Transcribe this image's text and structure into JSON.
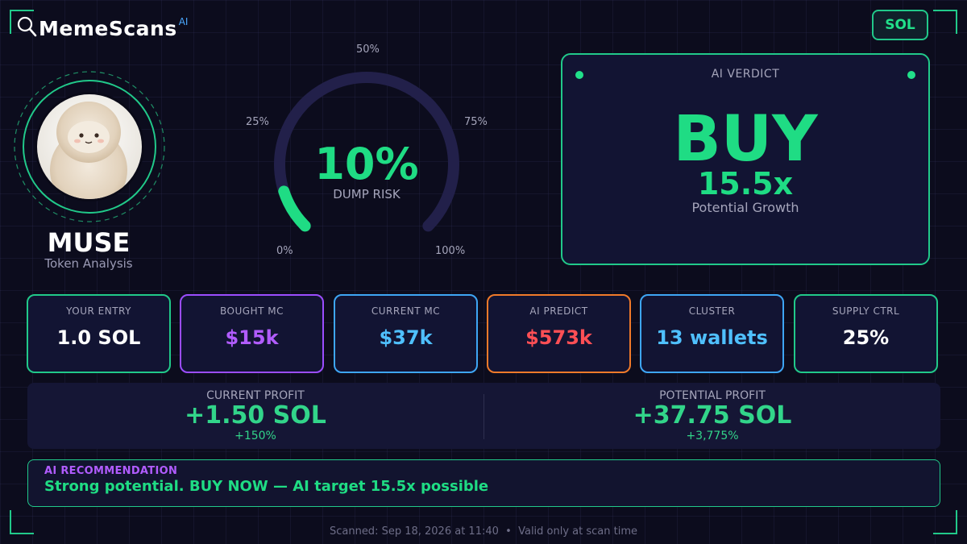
{
  "brand": {
    "name": "MemeScans",
    "badge": "AI",
    "icon": "magnifier-icon"
  },
  "chain_button": "SOL",
  "token": {
    "name": "MUSE",
    "subtitle": "Token Analysis",
    "avatar": "fluffy-creature-avatar"
  },
  "gauge": {
    "value_percent": 10,
    "value_label": "10%",
    "sub_label": "DUMP RISK",
    "tick_0": "0%",
    "tick_25": "25%",
    "tick_50": "50%",
    "tick_75": "75%",
    "tick_100": "100%",
    "track_color": "#22204a",
    "fill_color": "#1fdc84"
  },
  "verdict": {
    "title": "AI VERDICT",
    "decision": "BUY",
    "multiplier": "15.5x",
    "sub": "Potential Growth"
  },
  "stats": [
    {
      "label": "YOUR ENTRY",
      "value": "1.0 SOL",
      "border": "#21c98a",
      "color": "#ffffff"
    },
    {
      "label": "BOUGHT MC",
      "value": "$15k",
      "border": "#9b4dff",
      "color": "#b15cff"
    },
    {
      "label": "CURRENT MC",
      "value": "$37k",
      "border": "#3ea6f5",
      "color": "#4fc0ff"
    },
    {
      "label": "AI PREDICT",
      "value": "$573k",
      "border": "#f07a2a",
      "color": "#ff4f55"
    },
    {
      "label": "CLUSTER",
      "value": "13 wallets",
      "border": "#3ea6f5",
      "color": "#4fc0ff"
    },
    {
      "label": "SUPPLY CTRL",
      "value": "25%",
      "border": "#21c98a",
      "color": "#ffffff"
    }
  ],
  "profit": {
    "current": {
      "label": "CURRENT PROFIT",
      "value": "+1.50 SOL",
      "pct": "+150%"
    },
    "potential": {
      "label": "POTENTIAL PROFIT",
      "value": "+37.75 SOL",
      "pct": "+3,775%"
    }
  },
  "recommendation": {
    "title": "AI RECOMMENDATION",
    "text": "Strong potential. BUY NOW — AI target 15.5x possible"
  },
  "footer": "Scanned: Sep 18, 2026 at 11:40  •  Valid only at scan time"
}
